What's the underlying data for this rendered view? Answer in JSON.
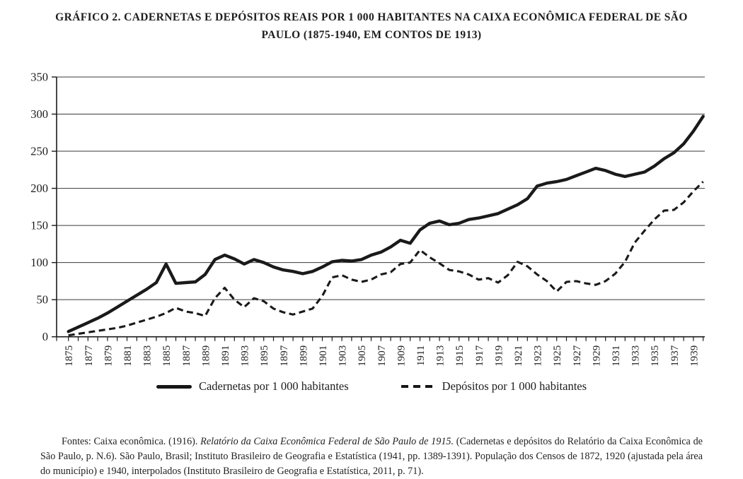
{
  "title": "GRÁFICO 2. CADERNETAS E DEPÓSITOS REAIS POR 1 000 HABITANTES NA CAIXA ECONÔMICA FEDERAL DE SÃO PAULO (1875-1940, EM CONTOS DE 1913)",
  "chart_data": {
    "type": "line",
    "title": "Cadernetas e depósitos reais por 1 000 habitantes na Caixa Econômica Federal de São Paulo, 1875-1940, em contos de 1913",
    "x": [
      1875,
      1876,
      1877,
      1878,
      1879,
      1880,
      1881,
      1882,
      1883,
      1884,
      1885,
      1886,
      1887,
      1888,
      1889,
      1890,
      1891,
      1892,
      1893,
      1894,
      1895,
      1896,
      1897,
      1898,
      1899,
      1900,
      1901,
      1902,
      1903,
      1904,
      1905,
      1906,
      1907,
      1908,
      1909,
      1910,
      1911,
      1912,
      1913,
      1914,
      1915,
      1916,
      1917,
      1918,
      1919,
      1920,
      1921,
      1922,
      1923,
      1924,
      1925,
      1926,
      1927,
      1928,
      1929,
      1930,
      1931,
      1932,
      1933,
      1934,
      1935,
      1936,
      1937,
      1938,
      1939,
      1940
    ],
    "series": [
      {
        "name": "Cadernetas por 1 000 habitantes",
        "style": "solid",
        "values": [
          7,
          13,
          19,
          25,
          32,
          40,
          48,
          56,
          64,
          73,
          98,
          72,
          73,
          74,
          84,
          104,
          110,
          105,
          98,
          104,
          100,
          94,
          90,
          88,
          85,
          88,
          94,
          101,
          103,
          102,
          104,
          110,
          114,
          121,
          130,
          126,
          144,
          153,
          156,
          151,
          153,
          158,
          160,
          163,
          166,
          172,
          178,
          186,
          203,
          207,
          209,
          212,
          217,
          222,
          227,
          224,
          219,
          216,
          219,
          222,
          230,
          240,
          248,
          260,
          277,
          297
        ]
      },
      {
        "name": "Depósitos por 1 000 habitantes",
        "style": "dashed",
        "values": [
          2,
          4,
          6,
          8,
          10,
          12,
          15,
          19,
          23,
          27,
          32,
          39,
          34,
          32,
          28,
          52,
          66,
          50,
          40,
          52,
          48,
          38,
          33,
          30,
          34,
          38,
          55,
          80,
          83,
          77,
          74,
          77,
          84,
          87,
          98,
          100,
          117,
          107,
          99,
          90,
          88,
          84,
          77,
          79,
          73,
          83,
          101,
          95,
          84,
          75,
          61,
          74,
          75,
          72,
          70,
          75,
          85,
          101,
          127,
          143,
          158,
          170,
          171,
          181,
          196,
          209
        ]
      }
    ],
    "xtick_labels": [
      "1875",
      "1877",
      "1879",
      "1881",
      "1883",
      "1885",
      "1887",
      "1889",
      "1891",
      "1893",
      "1895",
      "1897",
      "1899",
      "1901",
      "1903",
      "1905",
      "1907",
      "1909",
      "1911",
      "1913",
      "1915",
      "1917",
      "1919",
      "1921",
      "1923",
      "1925",
      "1927",
      "1929",
      "1931",
      "1933",
      "1935",
      "1937",
      "1939"
    ],
    "yticks": [
      0,
      50,
      100,
      150,
      200,
      250,
      300,
      350
    ],
    "ylim": [
      0,
      350
    ],
    "grid": "horizontal",
    "legend_position": "bottom",
    "line_color": "#1a1a1a"
  },
  "footnote": {
    "prefix": "Fontes: Caixa econômica. (1916). ",
    "italic": "Relatório da Caixa Econômica Federal de São Paulo de 1915.",
    "suffix": " (Cadernetas e depósitos do Relatório da Caixa Econômica de São Paulo, p. N.6). São Paulo, Brasil; Instituto Brasileiro de Geografia e Estatística (1941, pp. 1389-1391). População dos Censos de 1872, 1920 (ajustada pela área do município) e 1940, interpolados (Instituto Brasileiro de Geografia e Estatística, 2011, p. 71)."
  }
}
